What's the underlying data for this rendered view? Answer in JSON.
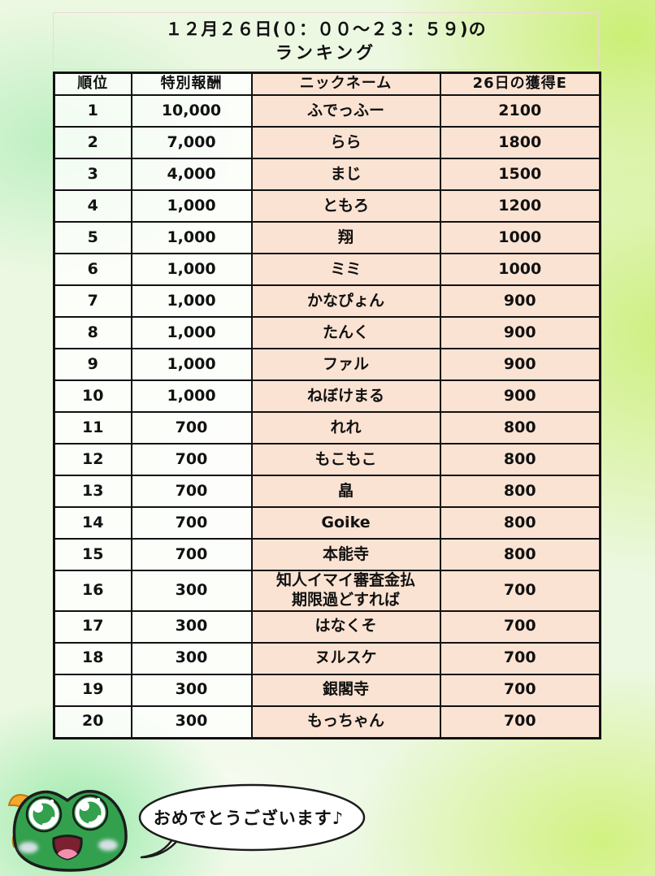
{
  "title": {
    "line1": "１２月２６日(０：００～２３：５９)の",
    "line2": "ランキング"
  },
  "table": {
    "headers": [
      "順位",
      "特別報酬",
      "ニックネーム",
      "26日の獲得E"
    ],
    "rows": [
      {
        "rank": "1",
        "reward": "10,000",
        "nickname": "ふでっふー",
        "earned": "2100"
      },
      {
        "rank": "2",
        "reward": "7,000",
        "nickname": "らら",
        "earned": "1800"
      },
      {
        "rank": "3",
        "reward": "4,000",
        "nickname": "まじ",
        "earned": "1500"
      },
      {
        "rank": "4",
        "reward": "1,000",
        "nickname": "ともろ",
        "earned": "1200"
      },
      {
        "rank": "5",
        "reward": "1,000",
        "nickname": "翔",
        "earned": "1000"
      },
      {
        "rank": "6",
        "reward": "1,000",
        "nickname": "ミミ",
        "earned": "1000"
      },
      {
        "rank": "7",
        "reward": "1,000",
        "nickname": "かなぴょん",
        "earned": "900"
      },
      {
        "rank": "8",
        "reward": "1,000",
        "nickname": "たんく",
        "earned": "900"
      },
      {
        "rank": "9",
        "reward": "1,000",
        "nickname": "ファル",
        "earned": "900"
      },
      {
        "rank": "10",
        "reward": "1,000",
        "nickname": "ねぼけまる",
        "earned": "900"
      },
      {
        "rank": "11",
        "reward": "700",
        "nickname": "れれ",
        "earned": "800"
      },
      {
        "rank": "12",
        "reward": "700",
        "nickname": "もこもこ",
        "earned": "800"
      },
      {
        "rank": "13",
        "reward": "700",
        "nickname": "皛",
        "earned": "800"
      },
      {
        "rank": "14",
        "reward": "700",
        "nickname": "Goike",
        "earned": "800"
      },
      {
        "rank": "15",
        "reward": "700",
        "nickname": "本能寺",
        "earned": "800"
      },
      {
        "rank": "16",
        "reward": "300",
        "nickname": "知人イマイ審査金払\n期限過どすれば",
        "earned": "700"
      },
      {
        "rank": "17",
        "reward": "300",
        "nickname": "はなくそ",
        "earned": "700"
      },
      {
        "rank": "18",
        "reward": "300",
        "nickname": "ヌルスケ",
        "earned": "700"
      },
      {
        "rank": "19",
        "reward": "300",
        "nickname": "銀閣寺",
        "earned": "700"
      },
      {
        "rank": "20",
        "reward": "300",
        "nickname": "もっちゃん",
        "earned": "700"
      }
    ]
  },
  "mascot": {
    "speech": "おめでとうございます♪",
    "character": "frog-mascot"
  },
  "colors": {
    "cell_peach": "#fbe3d3",
    "cell_white_translucent": "rgba(255,255,255,0.78)",
    "table_border": "#111111",
    "title_border": "#eed8d8",
    "bg_mint": "#98e8a8",
    "bg_yellow_green": "#c9ee6e",
    "frog_green": "#33a04e",
    "bow_orange": "#f6a82c",
    "mouth_maroon": "#7c2030",
    "tongue_pink": "#f38fae"
  }
}
